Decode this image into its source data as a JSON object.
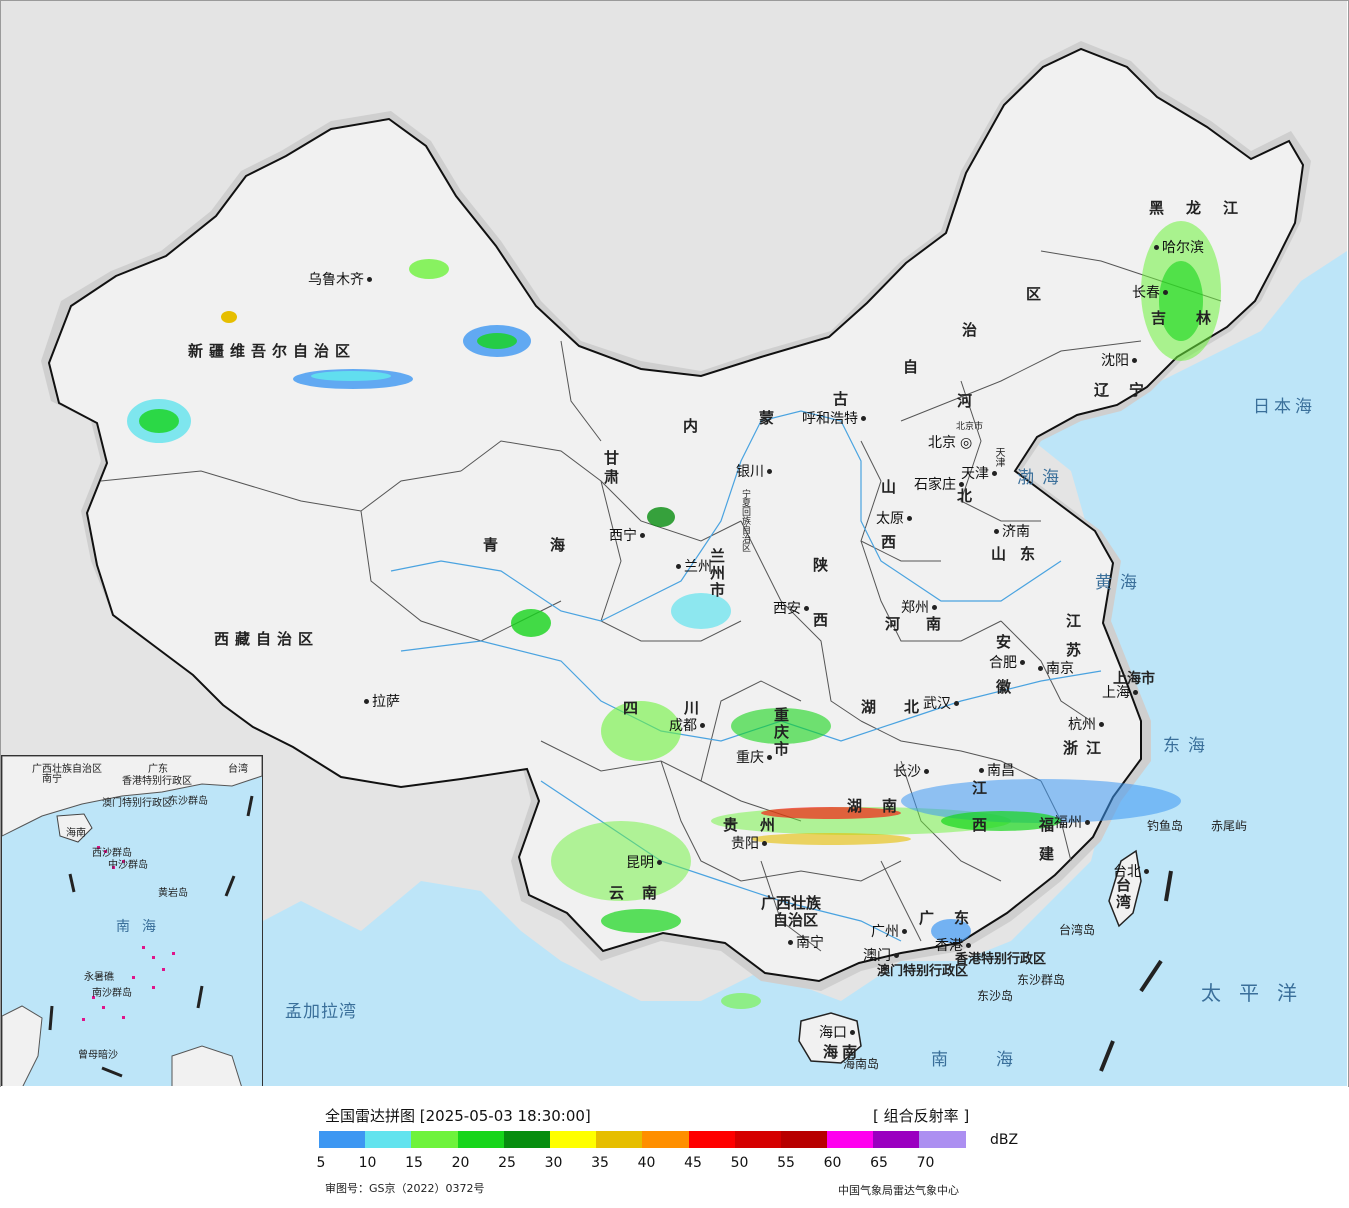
{
  "legend": {
    "title": "全国雷达拼图 [2025-05-03 18:30:00]",
    "product": "[ 组合反射率 ]",
    "unit": "dBZ",
    "ticks": [
      "5",
      "10",
      "15",
      "20",
      "25",
      "30",
      "35",
      "40",
      "45",
      "50",
      "55",
      "60",
      "65",
      "70"
    ],
    "colors": [
      "#3d97f2",
      "#62e3ee",
      "#6ef33c",
      "#17d51b",
      "#078d0f",
      "#ffff00",
      "#e6be00",
      "#ff8f00",
      "#ff0000",
      "#d50000",
      "#b80000",
      "#ff00ef",
      "#9a00c0",
      "#ac8ff1"
    ],
    "review_number": "审图号：GS京（2022）0372号",
    "credit": "中国气象局雷达气象中心"
  },
  "cities": [
    {
      "name": "乌鲁木齐",
      "side": "left"
    },
    {
      "name": "拉萨",
      "side": "right"
    },
    {
      "name": "西宁",
      "side": "left"
    },
    {
      "name": "兰州",
      "side": "left"
    },
    {
      "name": "银川",
      "side": "left"
    },
    {
      "name": "呼和浩特",
      "side": "left"
    },
    {
      "name": "北京",
      "side": "left"
    },
    {
      "name": "天津",
      "side": "left"
    },
    {
      "name": "石家庄",
      "side": "left"
    },
    {
      "name": "太原",
      "side": "left"
    },
    {
      "name": "济南",
      "side": "right"
    },
    {
      "name": "郑州",
      "side": "left"
    },
    {
      "name": "西安",
      "side": "left"
    },
    {
      "name": "成都",
      "side": "left"
    },
    {
      "name": "重庆",
      "side": "left"
    },
    {
      "name": "贵阳",
      "side": "left"
    },
    {
      "name": "昆明",
      "side": "left"
    },
    {
      "name": "南宁",
      "side": "right"
    },
    {
      "name": "广州",
      "side": "left"
    },
    {
      "name": "香港",
      "side": "left"
    },
    {
      "name": "澳门",
      "side": "left"
    },
    {
      "name": "海口",
      "side": "left"
    },
    {
      "name": "长沙",
      "side": "left"
    },
    {
      "name": "武汉",
      "side": "left"
    },
    {
      "name": "南昌",
      "side": "right"
    },
    {
      "name": "福州",
      "side": "left"
    },
    {
      "name": "杭州",
      "side": "left"
    },
    {
      "name": "上海",
      "side": "left"
    },
    {
      "name": "南京",
      "side": "right"
    },
    {
      "name": "合肥",
      "side": "left"
    },
    {
      "name": "沈阳",
      "side": "left"
    },
    {
      "name": "长春",
      "side": "left"
    },
    {
      "name": "哈尔滨",
      "side": "right"
    },
    {
      "name": "台北",
      "side": "left"
    }
  ],
  "provinces": [
    "新疆维吾尔自治区",
    "西藏自治区",
    "青海",
    "甘肃",
    "四川",
    "云南",
    "贵州",
    "广西壮族",
    "自治区",
    "广东",
    "海南",
    "湖南",
    "湖北",
    "河南",
    "陕西",
    "山西",
    "河北",
    "山东",
    "江苏",
    "安徽",
    "浙江",
    "江西",
    "福建",
    "台湾",
    "重庆市",
    "兰州市",
    "黑龙江",
    "吉林",
    "辽宁",
    "内",
    "蒙",
    "古",
    "自",
    "治",
    "区",
    "上海市",
    "宁夏回族自治区",
    "北京市",
    "天津",
    "香港特别行政区",
    "澳门特别行政区"
  ],
  "seas": [
    "日本海",
    "渤海",
    "黄海",
    "东海",
    "南海",
    "太平洋",
    "孟加拉湾"
  ],
  "islands": [
    "钓鱼岛",
    "赤尾屿",
    "台湾岛",
    "东沙群岛",
    "东沙岛",
    "海南岛"
  ],
  "inset": {
    "labels": [
      "广西壮族自治区",
      "南宁",
      "广东",
      "香港特别行政区",
      "澳门特别行政区",
      "台湾",
      "海南",
      "东沙群岛",
      "西沙群岛",
      "中沙群岛",
      "黄岩岛",
      "南海",
      "南沙群岛",
      "曾母暗沙",
      "永暑礁"
    ]
  }
}
